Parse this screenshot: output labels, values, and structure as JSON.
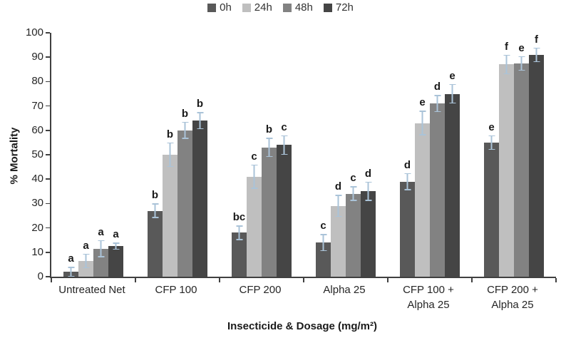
{
  "chart_data": {
    "type": "bar",
    "title": "",
    "xlabel": "Insecticide & Dosage (mg/m²)",
    "ylabel": "% Mortality",
    "ylim": [
      0,
      100
    ],
    "yticks": [
      0,
      10,
      20,
      30,
      40,
      50,
      60,
      70,
      80,
      90,
      100
    ],
    "grid": false,
    "legend_position": "top",
    "axis_color": "#404040",
    "error_bar_color": "#aac3d8",
    "categories": [
      "Untreated Net",
      "CFP 100",
      "CFP 200",
      "Alpha 25",
      "CFP 100 +\nAlpha 25",
      "CFP 200 +\nAlpha 25"
    ],
    "series": [
      {
        "name": "0h",
        "color": "#595959",
        "values": [
          2,
          27,
          18,
          14,
          39,
          55
        ],
        "errors": [
          2,
          3,
          3,
          3.5,
          3.5,
          3
        ],
        "letters": [
          "a",
          "b",
          "bc",
          "c",
          "d",
          "e"
        ]
      },
      {
        "name": "24h",
        "color": "#bfbfbf",
        "values": [
          6.5,
          50,
          41,
          29,
          63,
          87
        ],
        "errors": [
          3,
          5,
          5,
          4.5,
          5,
          4
        ],
        "letters": [
          "a",
          "b",
          "c",
          "d",
          "e",
          "f"
        ]
      },
      {
        "name": "48h",
        "color": "#828282",
        "values": [
          11.5,
          60,
          53,
          34,
          71,
          87.5
        ],
        "errors": [
          3.5,
          3.5,
          4,
          3,
          3.5,
          3
        ],
        "letters": [
          "a",
          "b",
          "b",
          "c",
          "d",
          "e"
        ]
      },
      {
        "name": "72h",
        "color": "#454545",
        "values": [
          12.5,
          64,
          54,
          35,
          75,
          91
        ],
        "errors": [
          1.5,
          3.5,
          4,
          4,
          4,
          3
        ],
        "letters": [
          "a",
          "b",
          "c",
          "d",
          "e",
          "f"
        ]
      }
    ]
  }
}
